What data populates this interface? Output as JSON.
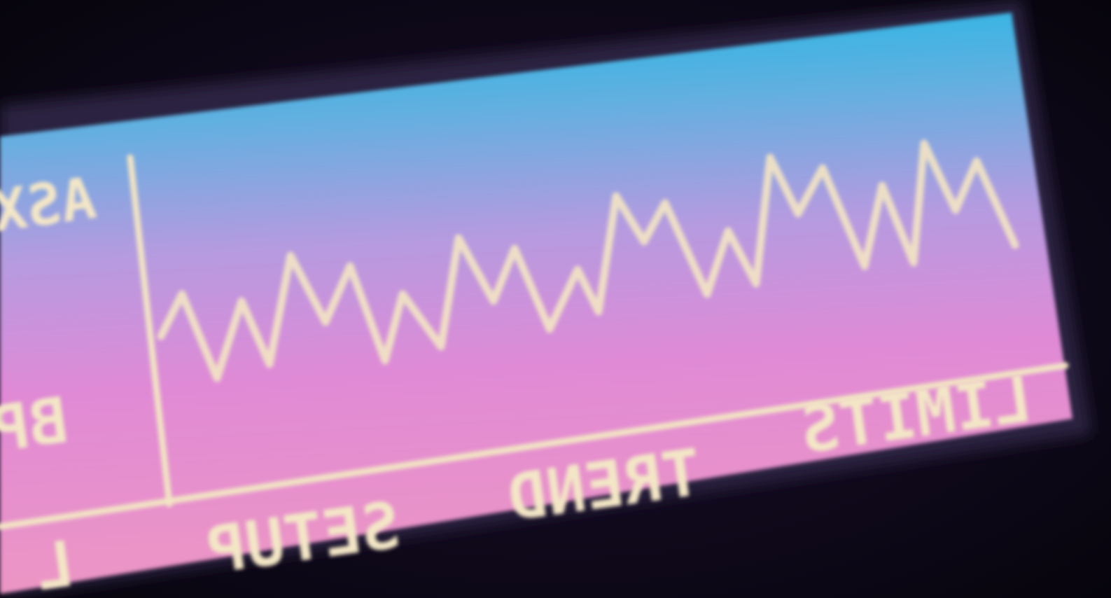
{
  "screen": {
    "side_labels": [
      "ASX",
      "BP"
    ],
    "softkeys": [
      "L",
      "SETUP",
      "TREND",
      "LIMITS"
    ]
  }
}
